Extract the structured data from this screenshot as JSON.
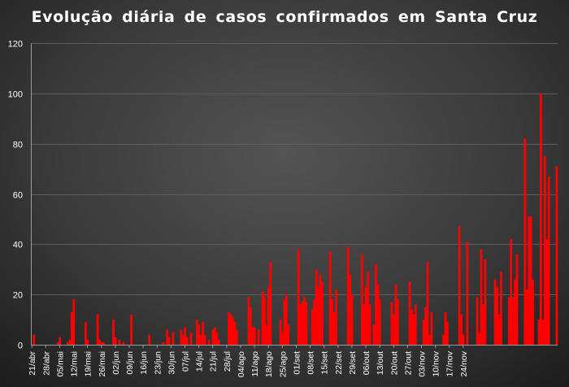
{
  "chart_data": {
    "type": "bar",
    "title": "Evolução diária de casos confirmados em Santa Cruz",
    "xlabel": "",
    "ylabel": "",
    "ylim": [
      0,
      120
    ],
    "yticks": [
      0,
      20,
      40,
      60,
      80,
      100,
      120
    ],
    "grid": true,
    "legend": "none",
    "bar_color": "#ff0000",
    "start_date": "2020-04-21",
    "x_tick_labels": [
      "21/abr",
      "28/abr",
      "05/mai",
      "12/mai",
      "19/mai",
      "26/mai",
      "02/jun",
      "09/jun",
      "16/jun",
      "23/jun",
      "30/jun",
      "07/jul",
      "14/jul",
      "21/jul",
      "28/jul",
      "04/ago",
      "11/ago",
      "18/ago",
      "25/ago",
      "01/set",
      "08/set",
      "15/set",
      "22/set",
      "29/set",
      "06/out",
      "13/out",
      "20/out",
      "27/out",
      "03/nov",
      "10/nov",
      "17/nov",
      "24/nov"
    ],
    "values": [
      0,
      4,
      0,
      0,
      0,
      0,
      0,
      0,
      0,
      0,
      0,
      0,
      0,
      1,
      3,
      0,
      0,
      0,
      1,
      2,
      13,
      18,
      0,
      0,
      0,
      0,
      0,
      9,
      2,
      0,
      0,
      0,
      0,
      12,
      2,
      1,
      1,
      0,
      0,
      0,
      0,
      10,
      3,
      0,
      2,
      0,
      1,
      0,
      0,
      0,
      12,
      0,
      0,
      0,
      0,
      0,
      0,
      0,
      0,
      4,
      0,
      0,
      0,
      0,
      0,
      0,
      1,
      0,
      6,
      3,
      0,
      5,
      0,
      0,
      0,
      6,
      4,
      7,
      3,
      0,
      5,
      0,
      0,
      10,
      8,
      4,
      9,
      4,
      0,
      2,
      0,
      6,
      7,
      5,
      2,
      0,
      0,
      0,
      0,
      13,
      12,
      11,
      9,
      6,
      0,
      0,
      0,
      0,
      0,
      19,
      15,
      7,
      7,
      0,
      6,
      0,
      21,
      19,
      8,
      23,
      33,
      0,
      0,
      0,
      0,
      10,
      5,
      18,
      20,
      8,
      0,
      0,
      0,
      0,
      38,
      16,
      17,
      19,
      17,
      0,
      0,
      14,
      18,
      30,
      23,
      28,
      25,
      0,
      0,
      0,
      37,
      18,
      13,
      22,
      0,
      0,
      0,
      0,
      0,
      39,
      28,
      20,
      0,
      0,
      0,
      0,
      36,
      16,
      23,
      29,
      16,
      0,
      8,
      32,
      24,
      18,
      0,
      0,
      0,
      0,
      0,
      17,
      12,
      24,
      18,
      0,
      0,
      0,
      0,
      0,
      25,
      14,
      12,
      16,
      0,
      0,
      0,
      10,
      15,
      33,
      4,
      13,
      0,
      0,
      0,
      0,
      0,
      4,
      13,
      9,
      0,
      0,
      0,
      0,
      0,
      47,
      12,
      4,
      0,
      41,
      0,
      0,
      0,
      0,
      19,
      5,
      38,
      16,
      34,
      0,
      0,
      0,
      0,
      26,
      23,
      12,
      29,
      0,
      0,
      0,
      19,
      42,
      19,
      26,
      36,
      0,
      0,
      0,
      82,
      22,
      51,
      51,
      26,
      0,
      0,
      10,
      100,
      10,
      75,
      42,
      67,
      0,
      0,
      0,
      71
    ]
  }
}
